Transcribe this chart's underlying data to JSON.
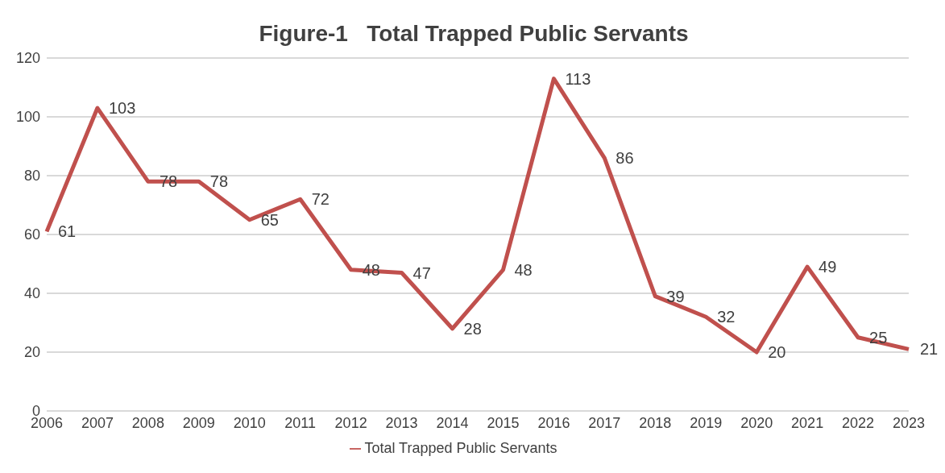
{
  "chart_data": {
    "type": "line",
    "title": "Figure-1   Total Trapped Public Servants",
    "categories": [
      "2006",
      "2007",
      "2008",
      "2009",
      "2010",
      "2011",
      "2012",
      "2013",
      "2014",
      "2015",
      "2016",
      "2017",
      "2018",
      "2019",
      "2020",
      "2021",
      "2022",
      "2023"
    ],
    "series": [
      {
        "name": "Total Trapped Public Servants",
        "color": "#c0504d",
        "values": [
          61,
          103,
          78,
          78,
          65,
          72,
          48,
          47,
          28,
          48,
          113,
          86,
          39,
          32,
          20,
          49,
          25,
          21
        ]
      }
    ],
    "ylim": [
      0,
      120
    ],
    "yticks": [
      0,
      20,
      40,
      60,
      80,
      100,
      120
    ],
    "grid": "y",
    "legend": "bottom",
    "marker": "none",
    "line_style": "solid",
    "data_labels": true
  }
}
